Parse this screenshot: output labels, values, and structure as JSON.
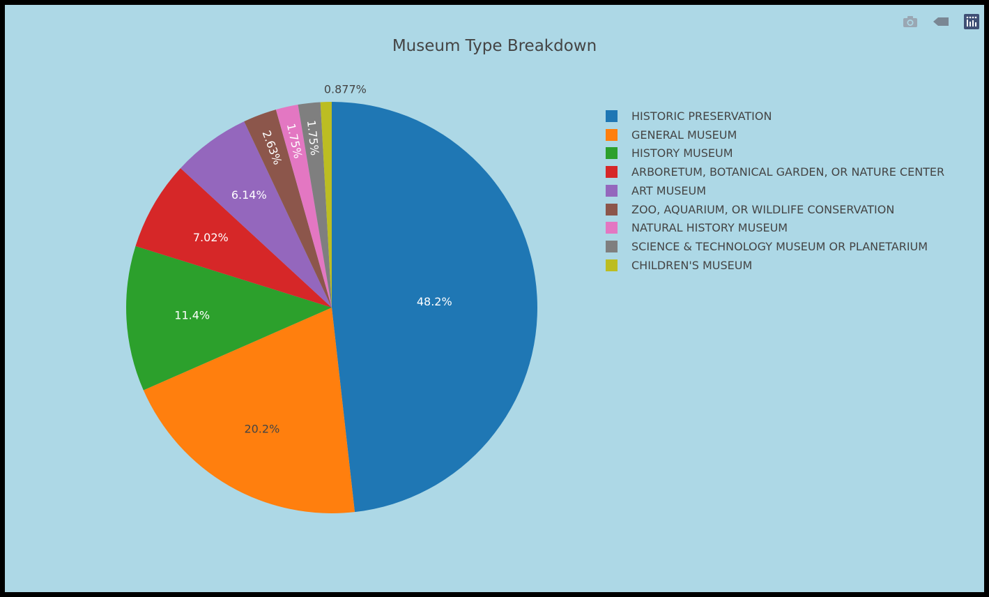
{
  "title": "Museum Type Breakdown",
  "toolbar": {
    "buttons": [
      {
        "name": "camera-icon"
      },
      {
        "name": "tag-icon"
      },
      {
        "name": "plotly-logo-icon"
      }
    ],
    "icon_color": "#9aa7b3",
    "logo_color": "#3f4f75"
  },
  "chart_data": {
    "type": "pie",
    "title": "Museum Type Breakdown",
    "sort": "descending",
    "direction": "counterclockwise",
    "start": "top",
    "legend_position": "right",
    "slices": [
      {
        "label": "HISTORIC PRESERVATION",
        "value": 48.2,
        "text": "48.2%",
        "color": "#1f77b4",
        "text_color": "#ffffff"
      },
      {
        "label": "GENERAL MUSEUM",
        "value": 20.2,
        "text": "20.2%",
        "color": "#ff7f0e",
        "text_color": "#444444"
      },
      {
        "label": "HISTORY MUSEUM",
        "value": 11.4,
        "text": "11.4%",
        "color": "#2ca02c",
        "text_color": "#ffffff"
      },
      {
        "label": "ARBORETUM, BOTANICAL GARDEN, OR NATURE CENTER",
        "value": 7.02,
        "text": "7.02%",
        "color": "#d62728",
        "text_color": "#ffffff"
      },
      {
        "label": "ART MUSEUM",
        "value": 6.14,
        "text": "6.14%",
        "color": "#9467bd",
        "text_color": "#ffffff"
      },
      {
        "label": "ZOO, AQUARIUM, OR WILDLIFE CONSERVATION",
        "value": 2.63,
        "text": "2.63%",
        "color": "#8c564b",
        "text_color": "#ffffff"
      },
      {
        "label": "NATURAL HISTORY MUSEUM",
        "value": 1.75,
        "text": "1.75%",
        "color": "#e377c2",
        "text_color": "#ffffff"
      },
      {
        "label": "SCIENCE & TECHNOLOGY MUSEUM OR PLANETARIUM",
        "value": 1.75,
        "text": "1.75%",
        "color": "#7f7f7f",
        "text_color": "#ffffff"
      },
      {
        "label": "CHILDREN'S MUSEUM",
        "value": 0.877,
        "text": "0.877%",
        "color": "#bcbd22",
        "text_color": "#444444"
      }
    ]
  }
}
